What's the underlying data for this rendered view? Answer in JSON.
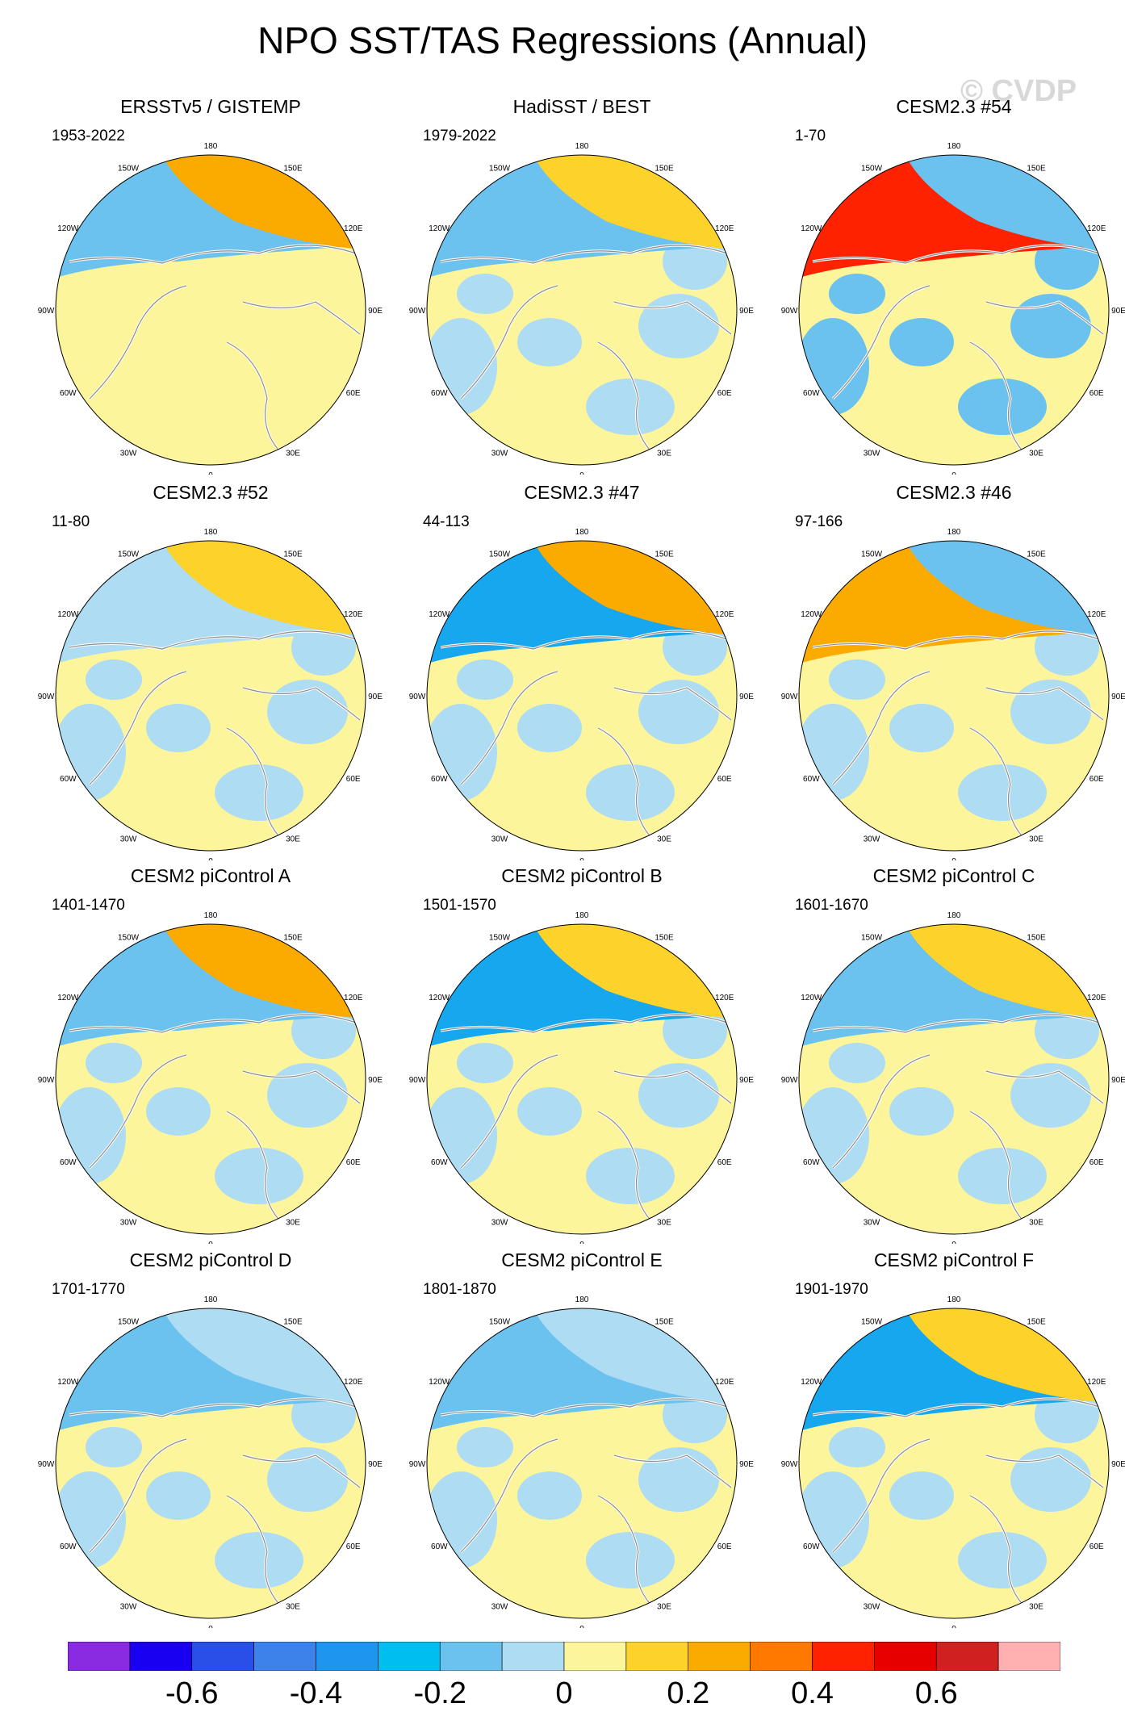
{
  "title": "NPO SST/TAS Regressions (Annual)",
  "watermark": "© CVDP",
  "colors": {
    "land": "#fdf59b",
    "ocean_neg1": "#aedcf2",
    "ocean_neg2": "#6cc2ee",
    "ocean_neg3": "#16a7ef",
    "pos1": "#fdd22a",
    "pos2": "#fbaa00",
    "pos3": "#ff7800",
    "pos4": "#ff2200",
    "coast": "#8c8c8c",
    "grid": "#000000"
  },
  "longitude_labels": [
    "180",
    "150E",
    "120E",
    "90E",
    "60E",
    "30E",
    "0",
    "30W",
    "60W",
    "90W",
    "120W",
    "150W"
  ],
  "panels": [
    {
      "title": "ERSSTv5 / GISTEMP",
      "period": "1953-2022",
      "pacific": {
        "north": "pos2",
        "south": "neg2"
      },
      "arctic": "land"
    },
    {
      "title": "HadiSST / BEST",
      "period": "1979-2022",
      "pacific": {
        "north": "pos1",
        "south": "neg2"
      },
      "arctic": "neg1"
    },
    {
      "title": "CESM2.3 #54",
      "period": "1-70",
      "pacific": {
        "north": "neg2",
        "south": "pos4"
      },
      "arctic": "neg2"
    },
    {
      "title": "CESM2.3 #52",
      "period": "11-80",
      "pacific": {
        "north": "pos1",
        "south": "neg1"
      },
      "arctic": "neg1"
    },
    {
      "title": "CESM2.3 #47",
      "period": "44-113",
      "pacific": {
        "north": "pos2",
        "south": "neg3"
      },
      "arctic": "neg1"
    },
    {
      "title": "CESM2.3 #46",
      "period": "97-166",
      "pacific": {
        "north": "neg2",
        "south": "pos2"
      },
      "arctic": "neg1"
    },
    {
      "title": "CESM2 piControl A",
      "period": "1401-1470",
      "pacific": {
        "north": "pos2",
        "south": "neg2"
      },
      "arctic": "neg1"
    },
    {
      "title": "CESM2 piControl B",
      "period": "1501-1570",
      "pacific": {
        "north": "pos1",
        "south": "neg3"
      },
      "arctic": "neg1"
    },
    {
      "title": "CESM2 piControl C",
      "period": "1601-1670",
      "pacific": {
        "north": "pos1",
        "south": "neg2"
      },
      "arctic": "neg1"
    },
    {
      "title": "CESM2 piControl D",
      "period": "1701-1770",
      "pacific": {
        "north": "neg1",
        "south": "neg2"
      },
      "arctic": "neg1"
    },
    {
      "title": "CESM2 piControl E",
      "period": "1801-1870",
      "pacific": {
        "north": "neg1",
        "south": "neg2"
      },
      "arctic": "neg1"
    },
    {
      "title": "CESM2 piControl F",
      "period": "1901-1970",
      "pacific": {
        "north": "pos1",
        "south": "neg3"
      },
      "arctic": "neg1"
    }
  ],
  "colorbar": {
    "colors": [
      "#8a2be2",
      "#1a00f0",
      "#2850e8",
      "#3c82ea",
      "#1e96f0",
      "#00bef0",
      "#6cc2ee",
      "#aedcf2",
      "#fdf59b",
      "#fdd22a",
      "#fbaa00",
      "#ff7800",
      "#ff2200",
      "#e60000",
      "#d02020",
      "#ffb0b0"
    ],
    "labels": [
      "-0.6",
      "-0.4",
      "-0.2",
      "0",
      "0.2",
      "0.4",
      "0.6"
    ],
    "label_boundary_index": [
      2,
      4,
      6,
      8,
      10,
      12,
      14
    ]
  }
}
